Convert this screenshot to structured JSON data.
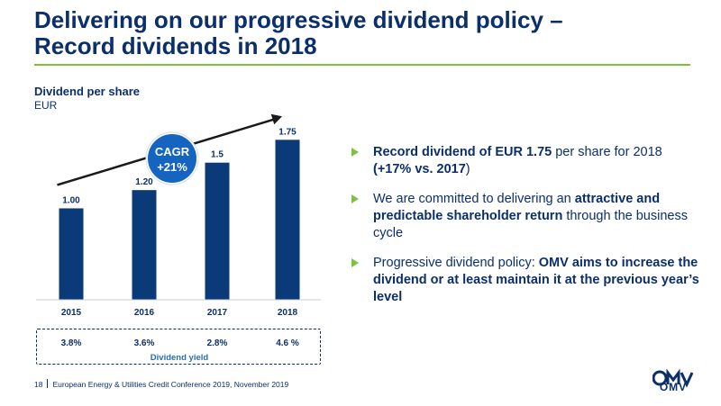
{
  "header": {
    "title_line1": "Delivering on our progressive dividend policy –",
    "title_line2": "Record dividends in 2018"
  },
  "chart_data": {
    "type": "bar",
    "title": "Dividend per share",
    "unit": "EUR",
    "categories": [
      "2015",
      "2016",
      "2017",
      "2018"
    ],
    "values": [
      1.0,
      1.2,
      1.5,
      1.75
    ],
    "value_labels": [
      "1.00",
      "1.20",
      "1.5",
      "1.75"
    ],
    "ylim": [
      0,
      1.95
    ],
    "bar_color": "#0b3a78",
    "cagr": {
      "label": "CAGR",
      "value": "+21%",
      "color": "#1565c0"
    },
    "dividend_yield": {
      "label": "Dividend yield",
      "values": [
        "3.8%",
        "3.6%",
        "2.8%",
        "4.6 %"
      ]
    }
  },
  "bullets": [
    {
      "parts": [
        {
          "text": "Record dividend of EUR 1.75",
          "bold": true
        },
        {
          "text": " per share for 2018 ",
          "bold": false
        },
        {
          "text": "(+17% vs. 2017",
          "bold": true
        },
        {
          "text": ")",
          "bold": false
        }
      ]
    },
    {
      "parts": [
        {
          "text": "We are committed to delivering an ",
          "bold": false
        },
        {
          "text": "attractive and predictable shareholder return",
          "bold": true
        },
        {
          "text": " through the business cycle",
          "bold": false
        }
      ]
    },
    {
      "parts": [
        {
          "text": "Progressive dividend policy: ",
          "bold": false
        },
        {
          "text": "OMV aims to increase the dividend or at least maintain it at the previous year’s level",
          "bold": true
        }
      ]
    }
  ],
  "footer": {
    "page_number": "18",
    "text": "European Energy & Utilities Credit Conference 2019, November 2019"
  },
  "logo": {
    "name": "omv-logo",
    "text": "OMV"
  },
  "colors": {
    "navy": "#0b2f6b",
    "green": "#7fc241",
    "accent_blue": "#2a6db5"
  }
}
